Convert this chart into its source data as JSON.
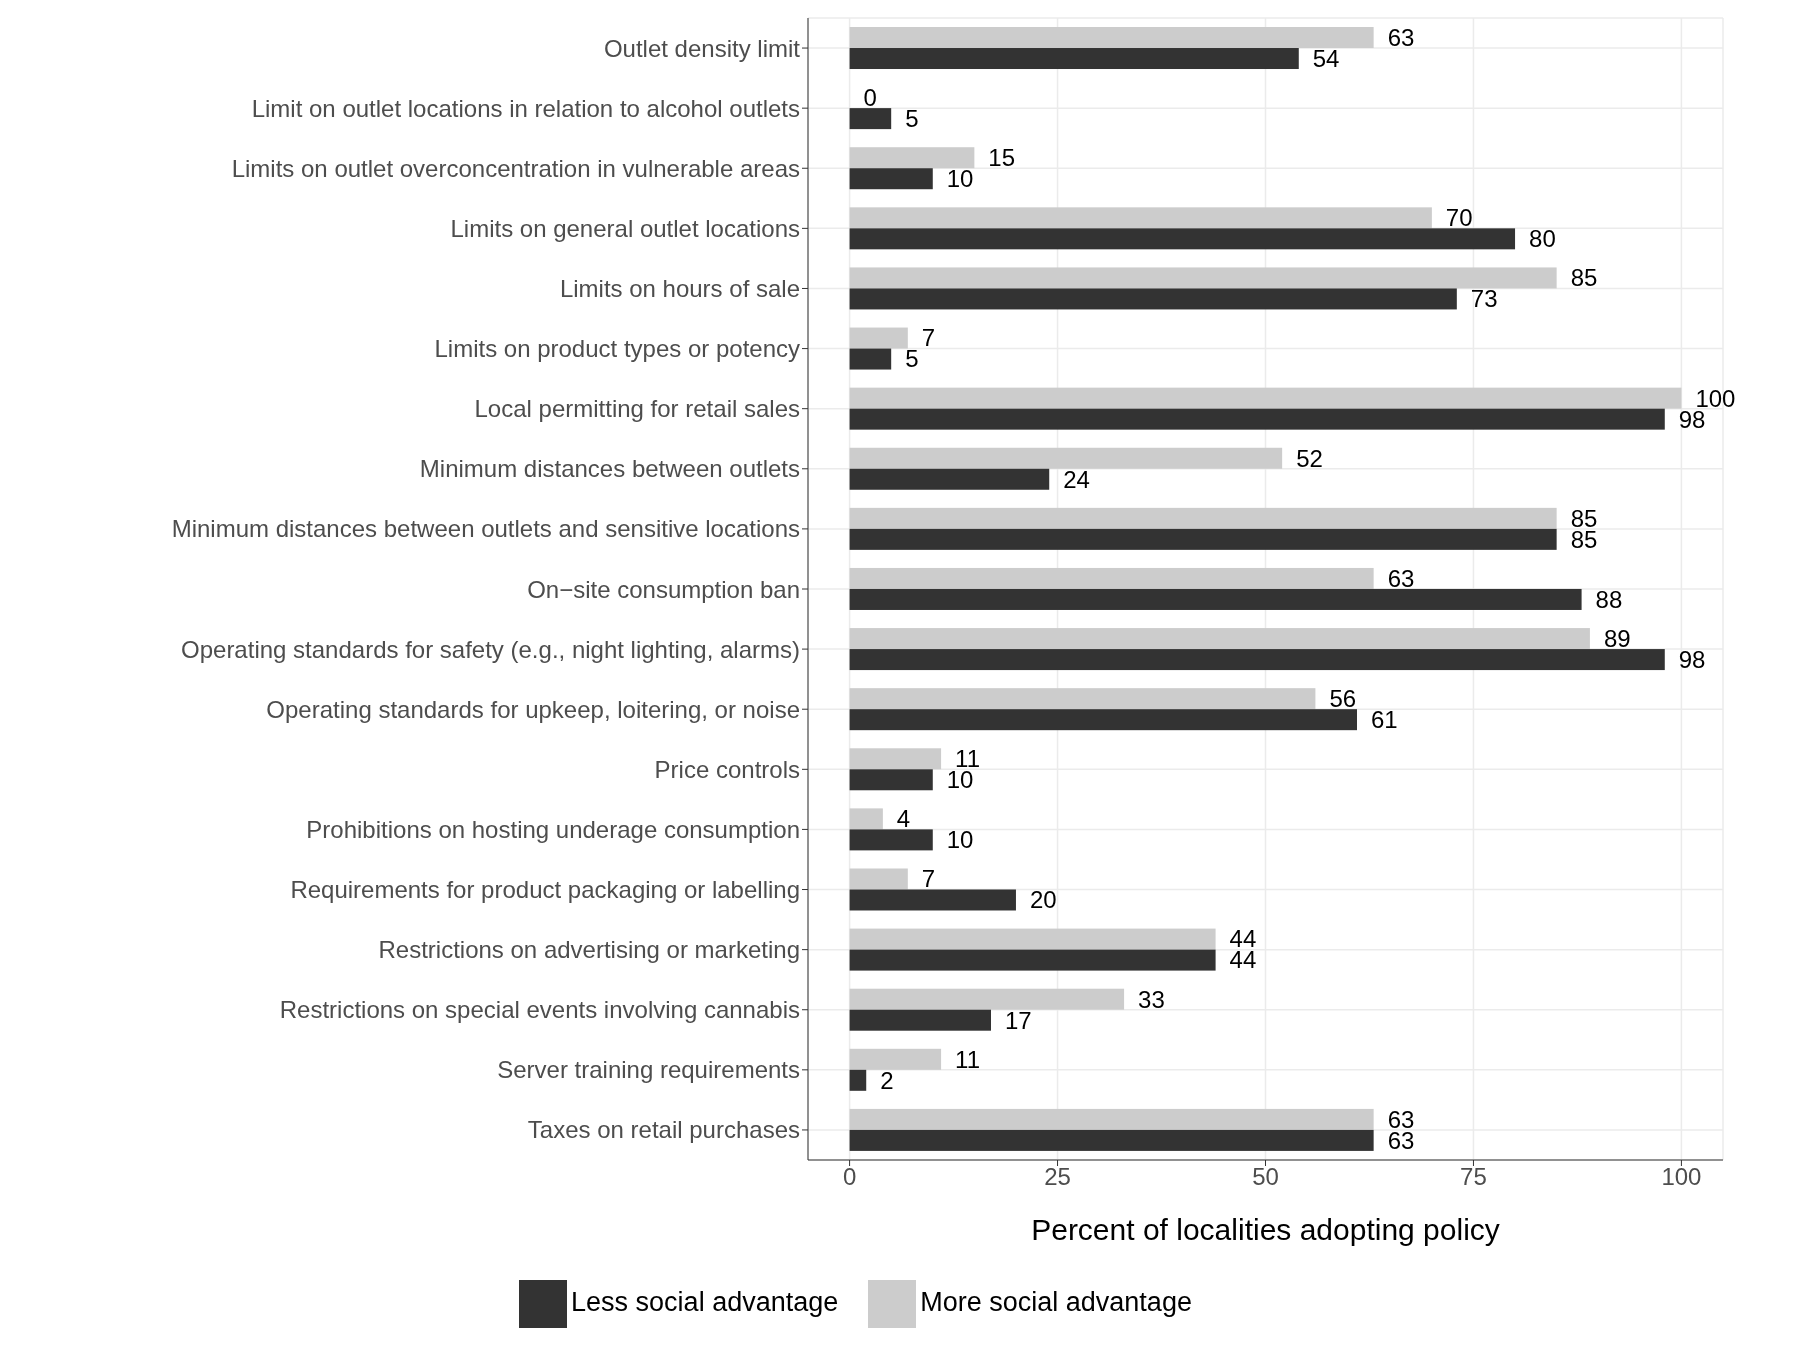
{
  "chart_data": {
    "type": "bar",
    "orientation": "horizontal",
    "xlabel": "Percent of localities adopting policy",
    "categories": [
      "Outlet density limit",
      "Limit on outlet locations in relation to alcohol outlets",
      "Limits on outlet overconcentration in vulnerable areas",
      "Limits on general outlet locations",
      "Limits on hours of sale",
      "Limits on product types or potency",
      "Local permitting for retail sales",
      "Minimum distances between outlets",
      "Minimum distances between outlets and sensitive locations",
      "On−site consumption ban",
      "Operating standards for safety (e.g., night lighting, alarms)",
      "Operating standards for upkeep, loitering, or noise",
      "Price controls",
      "Prohibitions on hosting underage consumption",
      "Requirements for product packaging or labelling",
      "Restrictions on advertising or marketing",
      "Restrictions on special events involving cannabis",
      "Server training requirements",
      "Taxes on retail purchases"
    ],
    "series": [
      {
        "name": "More social advantage",
        "color": "#cccccc",
        "values": [
          63,
          0,
          15,
          70,
          85,
          7,
          100,
          52,
          85,
          63,
          89,
          56,
          11,
          4,
          7,
          44,
          33,
          11,
          63
        ]
      },
      {
        "name": "Less social advantage",
        "color": "#333333",
        "values": [
          54,
          5,
          10,
          80,
          73,
          5,
          98,
          24,
          85,
          88,
          98,
          61,
          10,
          10,
          20,
          44,
          17,
          2,
          63
        ]
      }
    ],
    "xlim": [
      -5,
      105
    ],
    "xticks": [
      0,
      25,
      50,
      75,
      100
    ],
    "grid": true,
    "legend": "bottom",
    "data_labels": true
  }
}
